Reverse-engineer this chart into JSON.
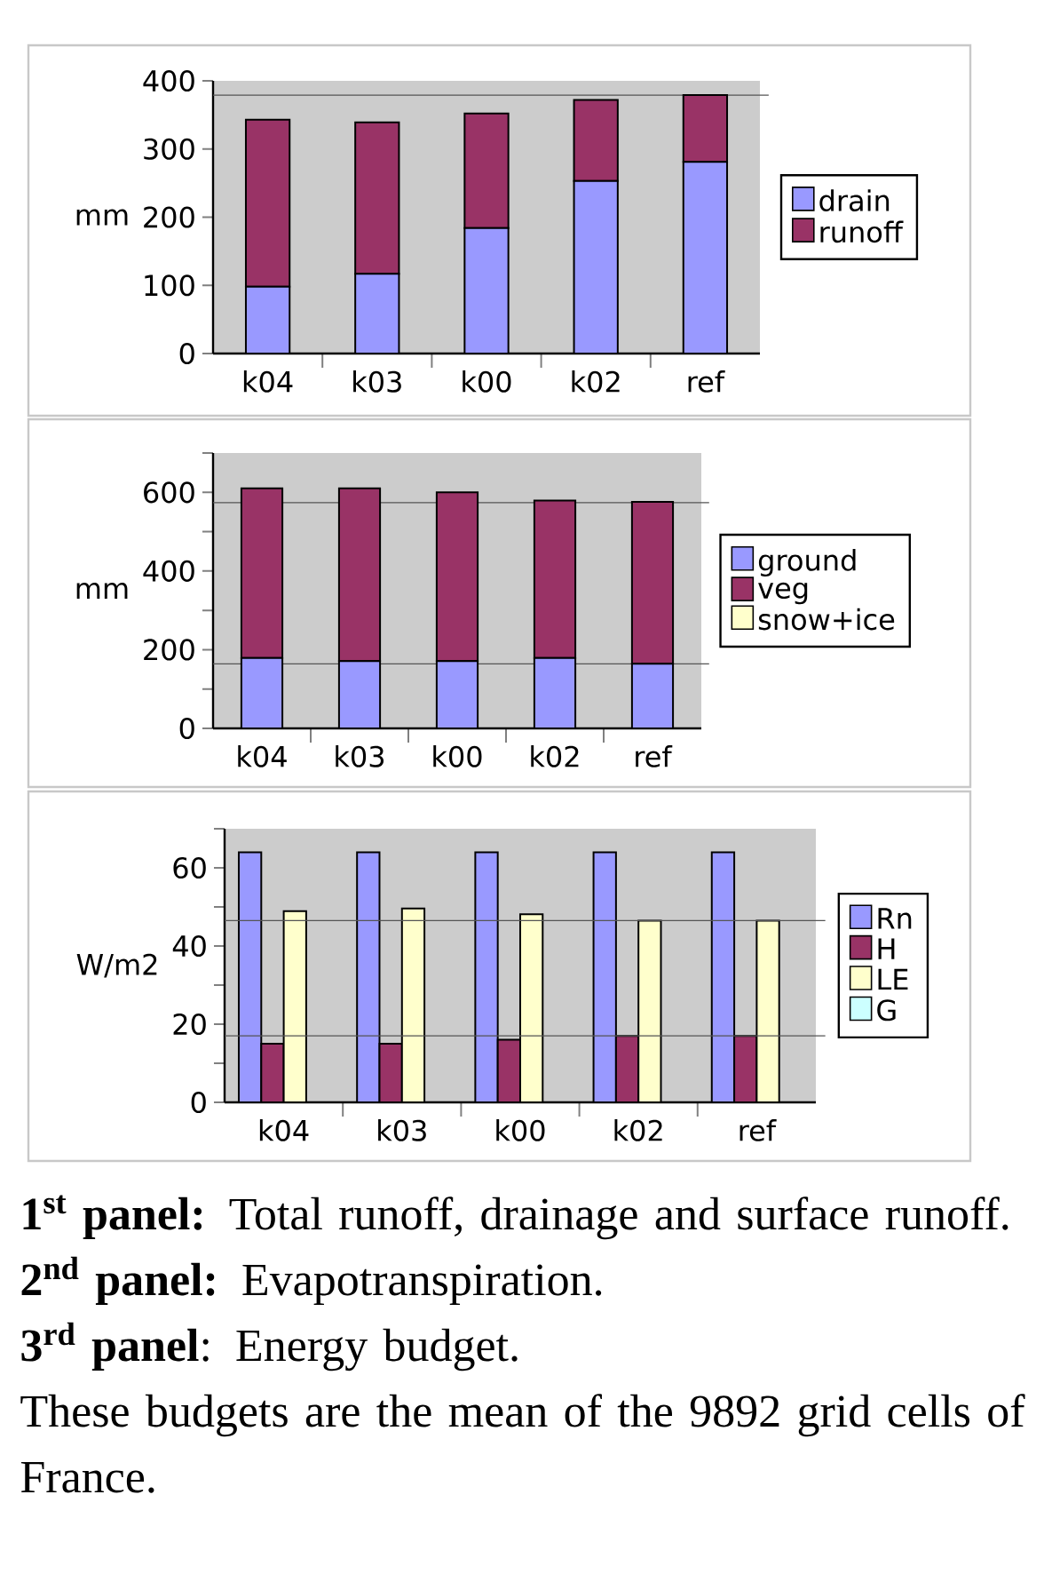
{
  "chart_data": [
    {
      "type": "bar",
      "ylabel": "mm",
      "stacked": true,
      "categories": [
        "k04",
        "k03",
        "k00",
        "k02",
        "ref"
      ],
      "series": [
        {
          "name": "drain",
          "color": "#9999ff",
          "values": [
            98,
            117,
            184,
            253,
            281
          ]
        },
        {
          "name": "runoff",
          "color": "#993366",
          "values": [
            245,
            222,
            168,
            119,
            98
          ]
        }
      ],
      "ylim": [
        0,
        400
      ],
      "yticks": [
        0,
        100,
        200,
        300,
        400
      ],
      "legend": "right",
      "ref_lines": [
        {
          "axis": "y",
          "value": 379,
          "color": "#555555"
        }
      ]
    },
    {
      "type": "bar",
      "ylabel": "mm",
      "stacked": true,
      "categories": [
        "k04",
        "k03",
        "k00",
        "k02",
        "ref"
      ],
      "series": [
        {
          "name": "ground",
          "color": "#9999ff",
          "values": [
            179,
            171,
            171,
            179,
            164
          ]
        },
        {
          "name": "veg",
          "color": "#993366",
          "values": [
            431,
            439,
            429,
            400,
            412
          ]
        },
        {
          "name": "snow+ice",
          "color": "#ffffcc",
          "values": [
            0,
            0,
            0,
            0,
            0
          ]
        }
      ],
      "ylim": [
        0,
        700
      ],
      "yticks": [
        0,
        {
          "value": 100,
          "label": null
        },
        200,
        {
          "value": 300,
          "label": null
        },
        400,
        {
          "value": 500,
          "label": null
        },
        600,
        {
          "value": 700,
          "label": null
        }
      ],
      "legend": "right",
      "ref_lines": [
        {
          "axis": "y",
          "value": 574,
          "color": "#555555"
        },
        {
          "axis": "y",
          "value": 164,
          "color": "#555555"
        }
      ]
    },
    {
      "type": "bar",
      "ylabel": "W/m2",
      "categories": [
        "k04",
        "k03",
        "k00",
        "k02",
        "ref"
      ],
      "series": [
        {
          "name": "Rn",
          "color": "#9999ff",
          "values": [
            64,
            64,
            64,
            64,
            64
          ]
        },
        {
          "name": "H",
          "color": "#993366",
          "values": [
            15,
            15,
            16,
            17,
            17
          ]
        },
        {
          "name": "LE",
          "color": "#ffffcc",
          "values": [
            48.9,
            49.6,
            48.1,
            46.5,
            46.5
          ]
        },
        {
          "name": "G",
          "color": "#ccffff",
          "values": [
            0,
            0,
            0,
            0,
            0
          ]
        }
      ],
      "ylim": [
        0,
        70
      ],
      "yticks": [
        0,
        {
          "value": 10,
          "label": null
        },
        20,
        {
          "value": 30,
          "label": null
        },
        40,
        {
          "value": 50,
          "label": null
        },
        60,
        {
          "value": 70,
          "label": null
        }
      ],
      "legend": "right",
      "ref_lines": [
        {
          "axis": "y",
          "value": 46.5,
          "color": "#555555"
        },
        {
          "axis": "y",
          "value": 17,
          "color": "#555555"
        }
      ],
      "annotations": [
        "**1$^{st}$ panel:** Total runoff, drainage and surface runoff.",
        "**2$^{nd}$ panel:** Evapotranspiration.",
        "**3$^{rd}$ panel**: Energy budget.",
        "These budgets are the mean of the 9892 grid cells of France."
      ]
    }
  ]
}
